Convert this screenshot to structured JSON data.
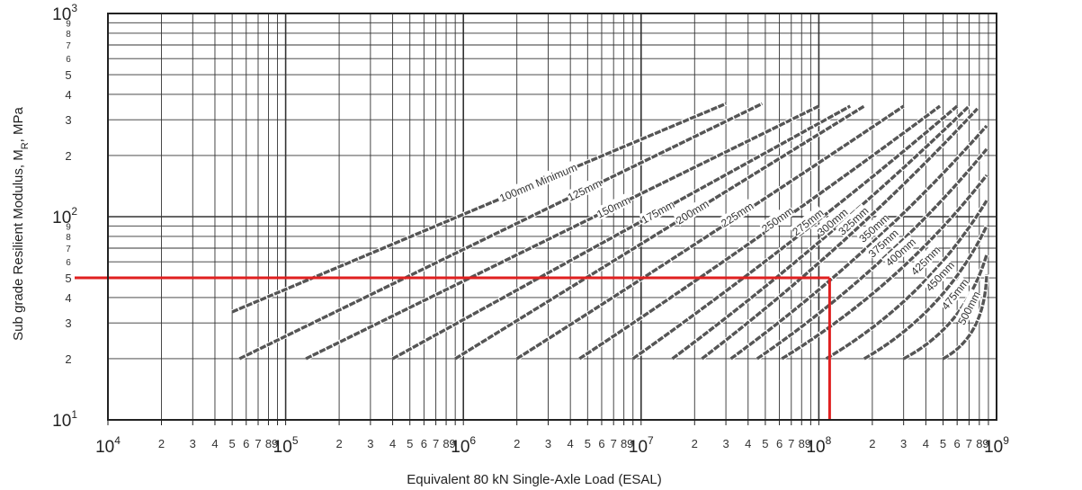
{
  "chart_data": {
    "type": "line",
    "title": "",
    "xlabel": "Equivalent 80 kN Single-Axle Load (ESAL)",
    "ylabel_parts": [
      "Sub grade Resilient Modulus, M",
      "R",
      ", MPa"
    ],
    "x_scale": "log",
    "y_scale": "log",
    "xlim": [
      10000,
      1000000000
    ],
    "ylim": [
      10,
      1000
    ],
    "grid": true,
    "x_tick_labels": {
      "decades": [
        {
          "value": 10000,
          "base": "10",
          "exp": "4"
        },
        {
          "value": 100000,
          "base": "10",
          "exp": "5"
        },
        {
          "value": 1000000,
          "base": "10",
          "exp": "6"
        },
        {
          "value": 10000000,
          "base": "10",
          "exp": "7"
        },
        {
          "value": 100000000,
          "base": "10",
          "exp": "8"
        },
        {
          "value": 1000000000,
          "base": "10",
          "exp": "9"
        }
      ],
      "minor": [
        "2",
        "3",
        "4",
        "5",
        "6",
        "7",
        "8",
        "9"
      ]
    },
    "y_tick_labels": {
      "decades": [
        {
          "value": 10,
          "base": "10",
          "exp": "1"
        },
        {
          "value": 100,
          "base": "10",
          "exp": "2"
        },
        {
          "value": 1000,
          "base": "10",
          "exp": "3"
        }
      ],
      "minor_big": [
        "2",
        "3",
        "4",
        "5"
      ],
      "minor_small": [
        "6",
        "7",
        "8",
        "9"
      ]
    },
    "series": [
      {
        "name": "100mm Minimum",
        "x": [
          50000,
          30000000
        ],
        "y": [
          34,
          360
        ]
      },
      {
        "name": "125mm",
        "x": [
          55000,
          48000000
        ],
        "y": [
          20,
          360
        ]
      },
      {
        "name": "150mm",
        "x": [
          130000,
          100000000
        ],
        "y": [
          20,
          350
        ]
      },
      {
        "name": "175mm",
        "x": [
          400000,
          150000000
        ],
        "y": [
          20,
          350
        ]
      },
      {
        "name": "200mm",
        "x": [
          900000,
          180000000
        ],
        "y": [
          20,
          350
        ]
      },
      {
        "name": "225mm",
        "x": [
          2000000,
          300000000
        ],
        "y": [
          20,
          350
        ]
      },
      {
        "name": "250mm",
        "x": [
          4500000,
          480000000
        ],
        "y": [
          20,
          350
        ]
      },
      {
        "name": "275mm",
        "x": [
          9000000,
          600000000
        ],
        "y": [
          20,
          350
        ]
      },
      {
        "name": "300mm",
        "x": [
          15000000,
          700000000
        ],
        "y": [
          20,
          350
        ]
      },
      {
        "name": "325mm",
        "x": [
          22000000,
          780000000
        ],
        "y": [
          20,
          340
        ]
      },
      {
        "name": "350mm",
        "x": [
          32000000,
          880000000
        ],
        "y": [
          20,
          280
        ]
      },
      {
        "name": "375mm",
        "x": [
          45000000,
          880000000
        ],
        "y": [
          20,
          215
        ]
      },
      {
        "name": "400mm",
        "x": [
          62000000,
          880000000
        ],
        "y": [
          20,
          160
        ]
      },
      {
        "name": "425mm",
        "x": [
          110000000,
          880000000
        ],
        "y": [
          20,
          120
        ]
      },
      {
        "name": "450mm",
        "x": [
          180000000,
          880000000
        ],
        "y": [
          20,
          90
        ]
      },
      {
        "name": "475mm",
        "x": [
          300000000,
          880000000
        ],
        "y": [
          20,
          65
        ]
      },
      {
        "name": "500mm",
        "x": [
          500000000,
          880000000
        ],
        "y": [
          20,
          52
        ]
      }
    ],
    "reference_lines": [
      {
        "type": "horizontal",
        "y": 50,
        "x_from": 10000,
        "x_to": 115000000,
        "color": "#e02020"
      },
      {
        "type": "vertical",
        "x": 115000000,
        "y_from": 50,
        "y_to": 10,
        "color": "#e02020"
      }
    ],
    "colors": {
      "curve": "#555555",
      "grid": "#333333",
      "reference": "#e02020"
    }
  }
}
